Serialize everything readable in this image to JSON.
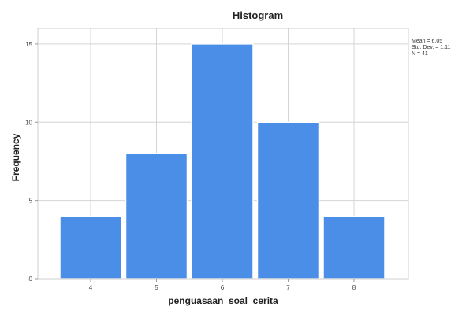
{
  "chart_data": {
    "type": "bar",
    "title": "Histogram",
    "xlabel": "penguasaan_soal_cerita",
    "ylabel": "Frequency",
    "categories": [
      "4",
      "5",
      "6",
      "7",
      "8"
    ],
    "values": [
      4,
      8,
      15,
      10,
      4
    ],
    "ylim": [
      0,
      16
    ],
    "yticks": [
      "0",
      "5",
      "10",
      "15"
    ],
    "bar_color": "#4a8ee8",
    "grid": true,
    "stats": [
      "Mean = 6.05",
      "Std. Dev. = 1.11",
      "N = 41"
    ]
  }
}
